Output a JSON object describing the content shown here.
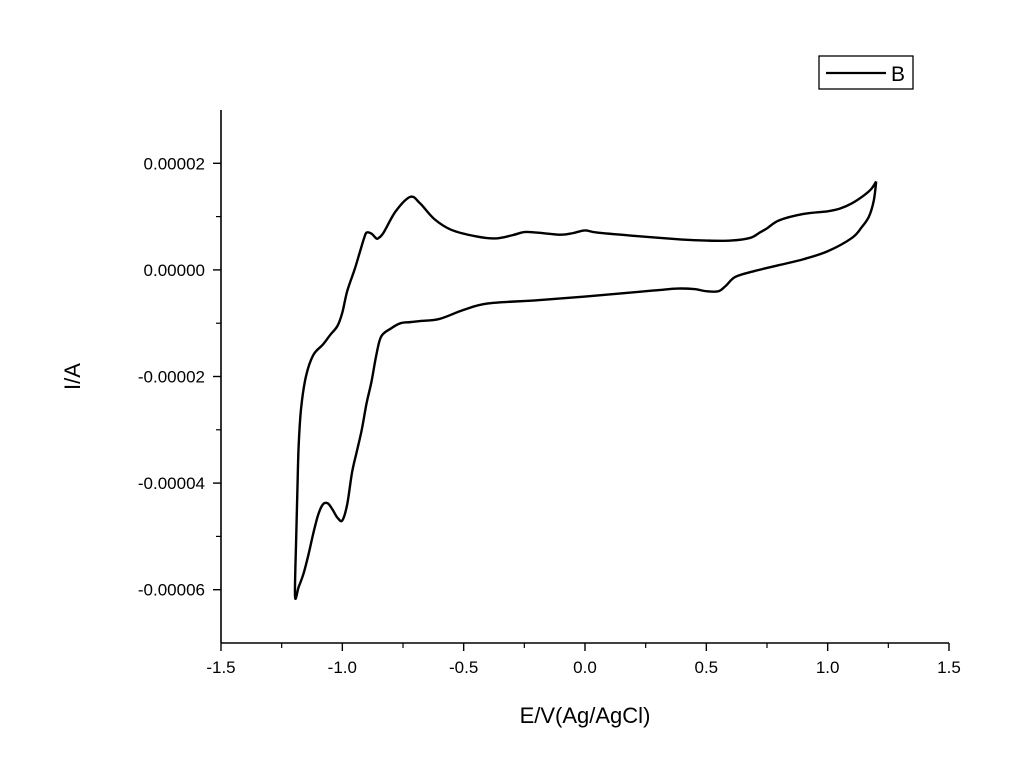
{
  "chart_data": {
    "type": "line",
    "title": "",
    "xlabel": "E/V(Ag/AgCl)",
    "ylabel": "I/A",
    "xlim": [
      -1.5,
      1.5
    ],
    "ylim": [
      -7e-05,
      3e-05
    ],
    "xticks": [
      -1.5,
      -1.0,
      -0.5,
      0.0,
      0.5,
      1.0,
      1.5
    ],
    "xtick_labels": [
      "-1.5",
      "-1.0",
      "-0.5",
      "0.0",
      "0.5",
      "1.0",
      "1.5"
    ],
    "yticks": [
      2e-05,
      0.0,
      -2e-05,
      -4e-05,
      -6e-05
    ],
    "ytick_labels": [
      "0.00002",
      "0.00000",
      "-0.00002",
      "-0.00004",
      "-0.00006"
    ],
    "grid": false,
    "legend": {
      "position": "top-right",
      "entries": [
        "B"
      ]
    },
    "series": [
      {
        "name": "B",
        "color": "#000000",
        "x": [
          1.2,
          1.19,
          1.17,
          1.14,
          1.1,
          1.0,
          0.9,
          0.8,
          0.7,
          0.62,
          0.58,
          0.55,
          0.5,
          0.45,
          0.38,
          0.3,
          0.2,
          0.0,
          -0.2,
          -0.4,
          -0.5,
          -0.6,
          -0.68,
          -0.72,
          -0.76,
          -0.8,
          -0.84,
          -0.86,
          -0.88,
          -0.9,
          -0.92,
          -0.94,
          -0.96,
          -0.98,
          -1.0,
          -1.02,
          -1.04,
          -1.06,
          -1.08,
          -1.1,
          -1.12,
          -1.14,
          -1.16,
          -1.18,
          -1.195,
          -1.19,
          -1.185,
          -1.18,
          -1.17,
          -1.15,
          -1.12,
          -1.08,
          -1.05,
          -1.02,
          -1.0,
          -0.98,
          -0.95,
          -0.93,
          -0.91,
          -0.9,
          -0.88,
          -0.86,
          -0.85,
          -0.83,
          -0.78,
          -0.72,
          -0.68,
          -0.62,
          -0.55,
          -0.45,
          -0.37,
          -0.3,
          -0.25,
          -0.2,
          -0.1,
          -0.05,
          0.0,
          0.05,
          0.2,
          0.4,
          0.5,
          0.6,
          0.68,
          0.72,
          0.75,
          0.8,
          0.9,
          1.0,
          1.05,
          1.1,
          1.15,
          1.18,
          1.2
        ],
        "y": [
          1.66e-05,
          1.3e-05,
          1e-05,
          8e-06,
          6e-06,
          3.5e-06,
          2e-06,
          9e-07,
          -2e-07,
          -1.3e-06,
          -3e-06,
          -4e-06,
          -4e-06,
          -3.6e-06,
          -3.5e-06,
          -3.8e-06,
          -4.2e-06,
          -5e-06,
          -5.7e-06,
          -6.3e-06,
          -7.5e-06,
          -9.2e-06,
          -9.6e-06,
          -9.8e-06,
          -1e-05,
          -1.1e-05,
          -1.25e-05,
          -1.6e-05,
          -2.1e-05,
          -2.5e-05,
          -3e-05,
          -3.4e-05,
          -3.8e-05,
          -4.4e-05,
          -4.7e-05,
          -4.65e-05,
          -4.5e-05,
          -4.38e-05,
          -4.4e-05,
          -4.6e-05,
          -4.95e-05,
          -5.35e-05,
          -5.7e-05,
          -5.95e-05,
          -6.12e-05,
          -5e-05,
          -4.1e-05,
          -3.3e-05,
          -2.6e-05,
          -2e-05,
          -1.6e-05,
          -1.4e-05,
          -1.22e-05,
          -1.05e-05,
          -8e-06,
          -4e-06,
          0.0,
          3e-06,
          6e-06,
          7e-06,
          6.8e-06,
          5.9e-06,
          6e-06,
          7e-06,
          1.1e-05,
          1.37e-05,
          1.25e-05,
          9.5e-06,
          7.5e-06,
          6.3e-06,
          5.9e-06,
          6.5e-06,
          7.1e-06,
          7e-06,
          6.6e-06,
          6.9e-06,
          7.4e-06,
          7e-06,
          6.4e-06,
          5.7e-06,
          5.5e-06,
          5.5e-06,
          6e-06,
          7e-06,
          7.8e-06,
          9.3e-06,
          1.05e-05,
          1.1e-05,
          1.15e-05,
          1.25e-05,
          1.4e-05,
          1.52e-05,
          1.66e-05
        ]
      }
    ]
  }
}
